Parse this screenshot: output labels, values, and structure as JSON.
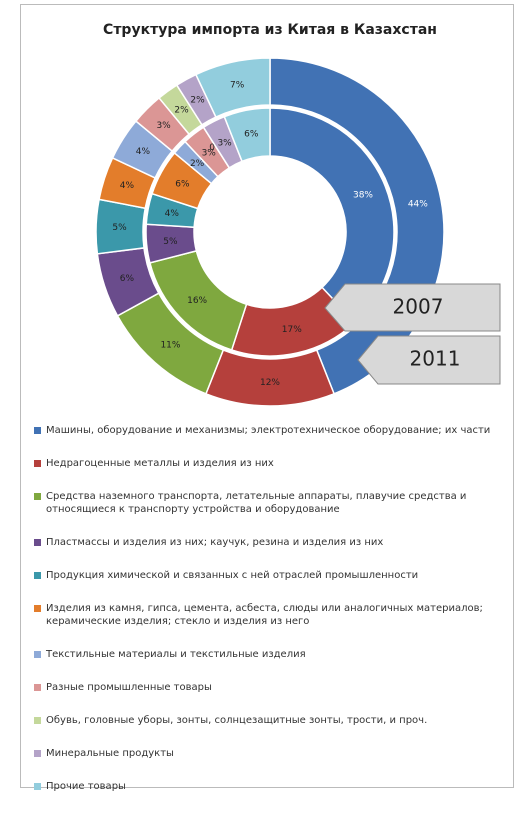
{
  "chart_data": {
    "type": "donut",
    "title": "Структура импорта из Китая в Казахстан",
    "categories": [
      "Машины, оборудование и механизмы; электротехническое оборудование; их части",
      "Недрагоценные металлы и изделия из них",
      "Средства наземного транспорта, летательные аппараты, плавучие средства и относящиеся к транспорту устройства и оборудование",
      "Пластмассы и изделия из них; каучук, резина и изделия из них",
      "Продукция химической и связанных с ней отраслей промышленности",
      "Изделия из камня, гипса, цемента, асбеста, слюды или аналогичных материалов; керамические изделия; стекло и изделия из него",
      "Текстильные материалы и текстильные изделия",
      "Разные промышленные товары",
      "Обувь, головные уборы, зонты, солнцезащитные зонты, трости, и проч.",
      "Минеральные продукты",
      "Прочие товары"
    ],
    "colors": [
      "#4172b4",
      "#b5403c",
      "#7fa83f",
      "#6a4c8c",
      "#3b98aa",
      "#e37d2b",
      "#8eaad8",
      "#db9695",
      "#c4d89b",
      "#b4a3c8",
      "#92cddd"
    ],
    "series": [
      {
        "name": "2007",
        "values": [
          38,
          17,
          16,
          5,
          4,
          6,
          2,
          3,
          0,
          3,
          6
        ],
        "value_labels": [
          "38%",
          "17%",
          "16%",
          "5%",
          "4%",
          "6%",
          "2%",
          "3%",
          "0%",
          "3%",
          "6%"
        ]
      },
      {
        "name": "2011",
        "values": [
          44,
          12,
          11,
          6,
          5,
          4,
          4,
          3,
          2,
          2,
          7
        ],
        "value_labels": [
          "44%",
          "12%",
          "11%",
          "6%",
          "5%",
          "4%",
          "4%",
          "3%",
          "2%",
          "2%",
          "7%"
        ]
      }
    ]
  }
}
